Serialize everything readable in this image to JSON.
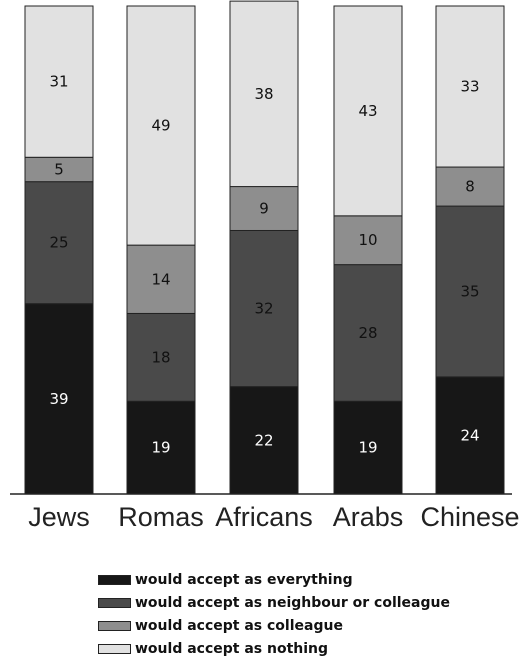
{
  "chart_data": {
    "type": "bar",
    "stacked": true,
    "percent": true,
    "categories": [
      "Jews",
      "Romas",
      "Africans",
      "Arabs",
      "Chinese"
    ],
    "series": [
      {
        "name": "would accept as everything",
        "values": [
          39,
          19,
          22,
          19,
          24
        ],
        "color": "#171717",
        "label_color": "#ffffff"
      },
      {
        "name": "would accept as neighbour or colleague",
        "values": [
          25,
          18,
          32,
          28,
          35
        ],
        "color": "#4a4a4a",
        "label_color": "#111111"
      },
      {
        "name": "would accept as colleague",
        "values": [
          5,
          14,
          9,
          10,
          8
        ],
        "color": "#8e8e8e",
        "label_color": "#111111"
      },
      {
        "name": "would accept as nothing",
        "values": [
          31,
          49,
          38,
          43,
          33
        ],
        "color": "#e1e1e1",
        "label_color": "#111111"
      }
    ],
    "title": "",
    "xlabel": "",
    "ylabel": "",
    "ylim": [
      0,
      100
    ],
    "grid": false,
    "legend_position": "bottom"
  }
}
